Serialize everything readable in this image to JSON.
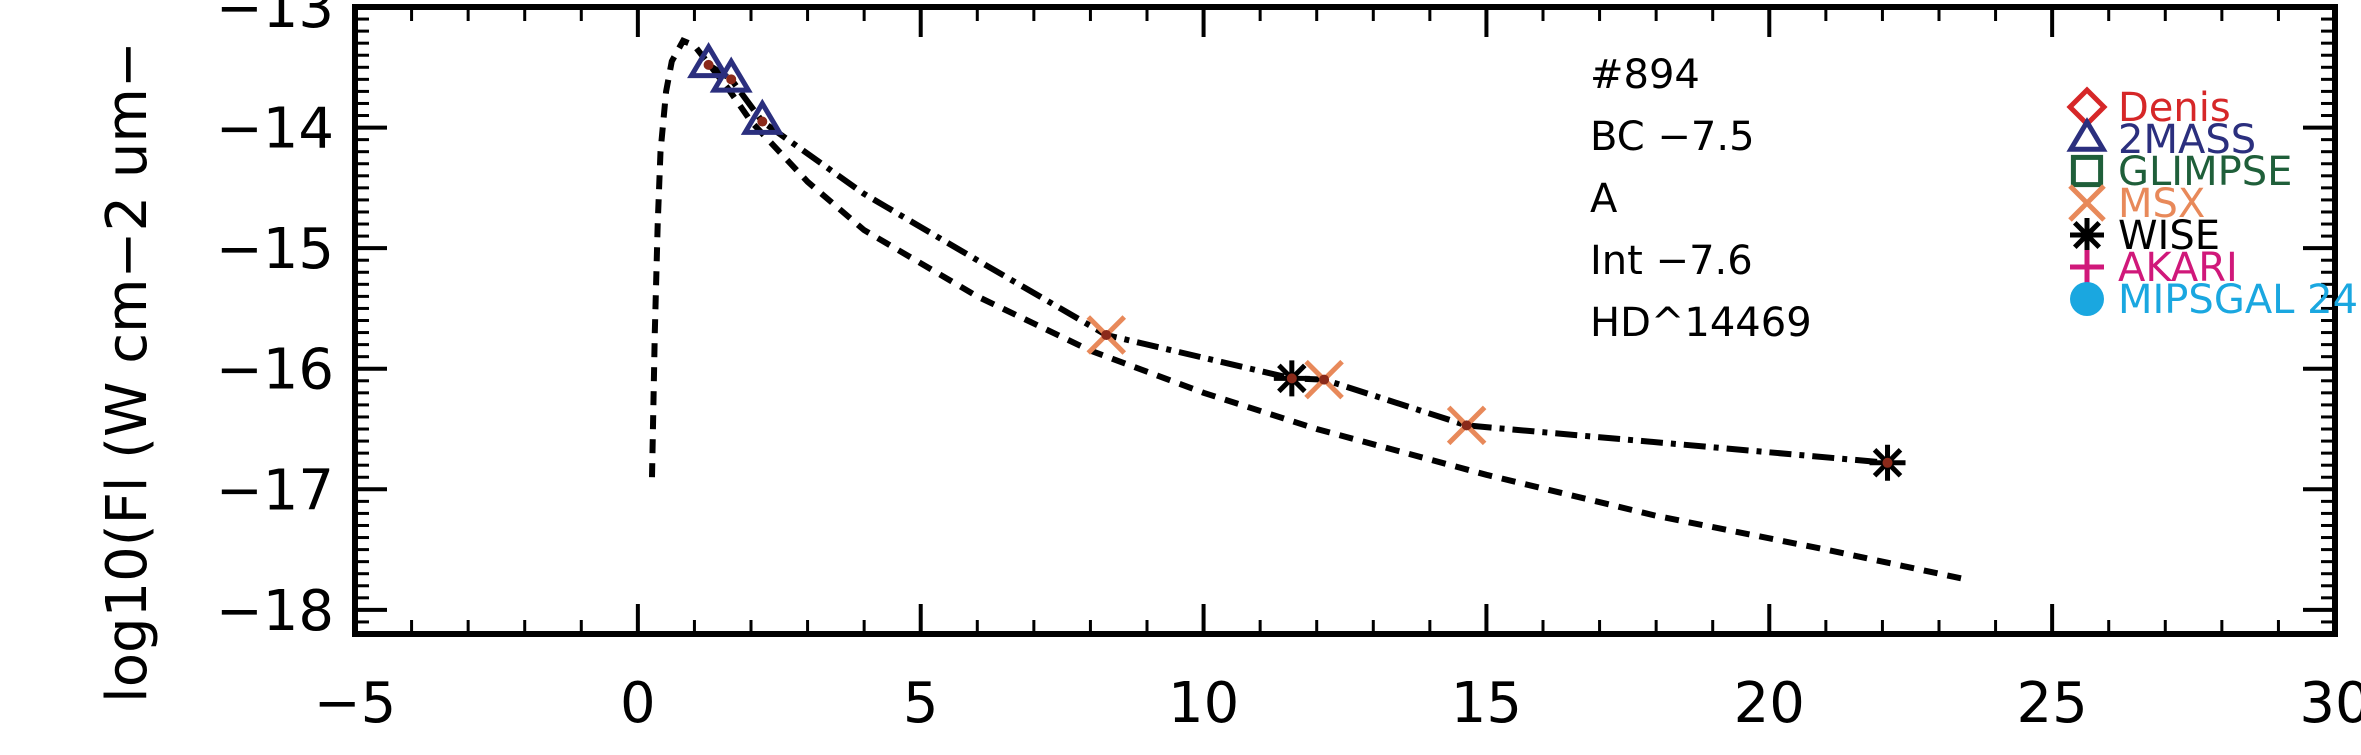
{
  "chart_data": {
    "type": "scatter",
    "title": "",
    "xlabel": "",
    "ylabel": "log10(Fl (W cm−2 um−",
    "xlim": [
      -5,
      30
    ],
    "ylim": [
      -18.2,
      -13
    ],
    "x_ticks": [
      -5,
      0,
      5,
      10,
      15,
      20,
      25,
      30
    ],
    "x_tick_labels": [
      "−5",
      "0",
      "5",
      "10",
      "15",
      "20",
      "25",
      "30"
    ],
    "y_ticks": [
      -18,
      -17,
      -16,
      -15,
      -14,
      -13
    ],
    "y_tick_labels": [
      "−18",
      "−17",
      "−16",
      "−15",
      "−14",
      "−13"
    ],
    "grid": false,
    "annotations": [
      "#894",
      "BC  −7.5",
      "A",
      "Int  −7.6",
      "HD^14469"
    ],
    "legend": {
      "position": "right",
      "entries": [
        {
          "name": "Denis",
          "marker": "diamond",
          "color": "#d62728"
        },
        {
          "name": "2MASS",
          "marker": "triangle",
          "color": "#2b2f7e"
        },
        {
          "name": "GLIMPSE",
          "marker": "square",
          "color": "#1f5f3a"
        },
        {
          "name": "MSX",
          "marker": "x",
          "color": "#e8895a"
        },
        {
          "name": "WISE",
          "marker": "asterisk",
          "color": "#000000"
        },
        {
          "name": "AKARI",
          "marker": "plus",
          "color": "#d0187a"
        },
        {
          "name": "MIPSGAL 24",
          "marker": "circle",
          "color": "#1aa7e0"
        }
      ]
    },
    "series": [
      {
        "marker": "triangle",
        "color": "#2b2f7e",
        "points": [
          [
            1.25,
            -13.48
          ],
          [
            1.65,
            -13.6
          ],
          [
            2.2,
            -13.95
          ]
        ]
      },
      {
        "marker": "x",
        "color": "#e8895a",
        "points": [
          [
            8.28,
            -15.72
          ],
          [
            12.13,
            -16.09
          ],
          [
            14.65,
            -16.47
          ]
        ]
      },
      {
        "marker": "asterisk",
        "color": "#000000",
        "points": [
          [
            11.56,
            -16.08
          ],
          [
            22.09,
            -16.78
          ]
        ]
      },
      {
        "marker": "dot",
        "color": "#8b2a1a",
        "points": [
          [
            1.25,
            -13.48
          ],
          [
            1.65,
            -13.6
          ],
          [
            2.2,
            -13.95
          ],
          [
            8.28,
            -15.72
          ],
          [
            11.56,
            -16.08
          ],
          [
            12.13,
            -16.09
          ],
          [
            14.65,
            -16.47
          ],
          [
            22.09,
            -16.78
          ]
        ]
      }
    ],
    "lines": [
      {
        "style": "dashed",
        "points": [
          [
            0.25,
            -16.9
          ],
          [
            0.3,
            -15.7
          ],
          [
            0.35,
            -14.8
          ],
          [
            0.4,
            -14.2
          ],
          [
            0.5,
            -13.7
          ],
          [
            0.6,
            -13.45
          ],
          [
            0.8,
            -13.28
          ],
          [
            1.0,
            -13.32
          ],
          [
            1.3,
            -13.5
          ],
          [
            1.6,
            -13.68
          ],
          [
            2.0,
            -13.95
          ],
          [
            3.0,
            -14.45
          ],
          [
            4.0,
            -14.85
          ],
          [
            6.0,
            -15.4
          ],
          [
            8.0,
            -15.85
          ],
          [
            10.0,
            -16.2
          ],
          [
            12.0,
            -16.5
          ],
          [
            15.0,
            -16.88
          ],
          [
            18.0,
            -17.22
          ],
          [
            21.0,
            -17.5
          ],
          [
            23.5,
            -17.75
          ]
        ]
      },
      {
        "style": "dashdot",
        "points": [
          [
            1.25,
            -13.48
          ],
          [
            1.65,
            -13.6
          ],
          [
            2.2,
            -13.95
          ],
          [
            4.0,
            -14.55
          ],
          [
            6.0,
            -15.1
          ],
          [
            8.28,
            -15.72
          ],
          [
            11.56,
            -16.08
          ],
          [
            12.13,
            -16.09
          ],
          [
            14.65,
            -16.47
          ],
          [
            22.09,
            -16.78
          ]
        ]
      }
    ]
  }
}
